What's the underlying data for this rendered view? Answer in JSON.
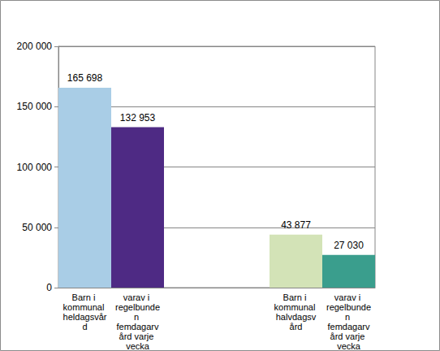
{
  "chart_data": {
    "type": "bar",
    "categories": [
      "Barn i kommunal heldagsvård",
      "varav i regelbunden femdagarvård varje vecka",
      null,
      null,
      "Barn i kommunal halvdagsvård",
      "varav i regelbunden femdagarvård varje vecka"
    ],
    "values": [
      165698,
      132953,
      null,
      null,
      43877,
      27030
    ],
    "value_labels": [
      "165 698",
      "132 953",
      null,
      null,
      "43 877",
      "27 030"
    ],
    "colors": [
      "#a9cde6",
      "#4e2a84",
      null,
      null,
      "#d3e3b7",
      "#3a9e8d"
    ],
    "ylim": [
      0,
      200000
    ],
    "yticks": [
      {
        "value": 0,
        "label": "0"
      },
      {
        "value": 50000,
        "label": "50 000"
      },
      {
        "value": 100000,
        "label": "100 000"
      },
      {
        "value": 150000,
        "label": "150 000"
      },
      {
        "value": 200000,
        "label": "200 000"
      }
    ],
    "grid": true,
    "data_labels": true
  }
}
